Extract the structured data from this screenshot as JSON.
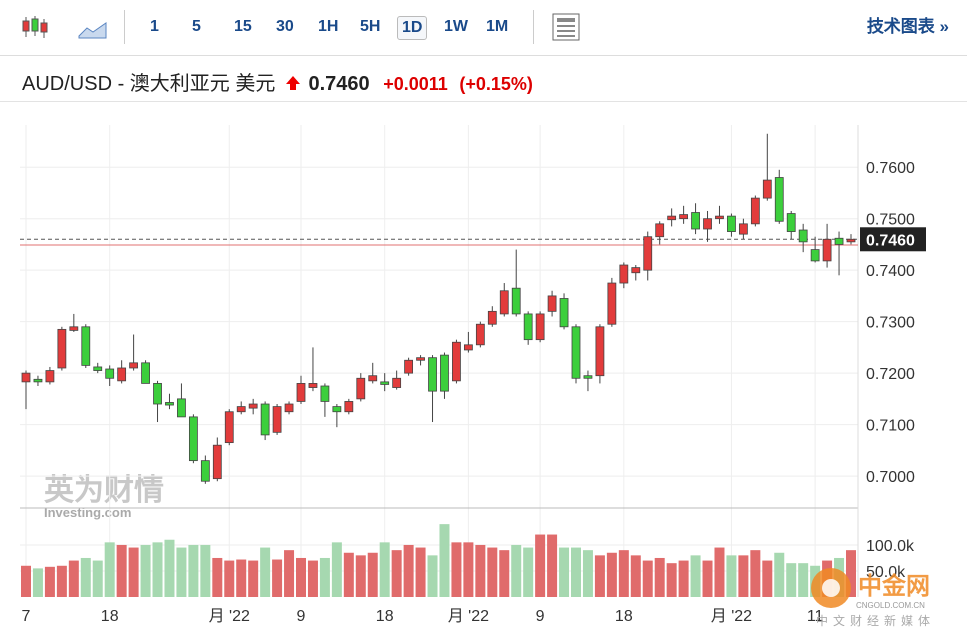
{
  "toolbar": {
    "intervals": [
      "1",
      "5",
      "15",
      "30",
      "1H",
      "5H",
      "1D",
      "1W",
      "1M"
    ],
    "active": "1D",
    "link": "技术图表 »"
  },
  "header": {
    "title": "AUD/USD - 澳大利亚元 美元",
    "price": "0.7460",
    "change": "+0.0011",
    "change_pct": "(+0.15%)"
  },
  "watermark": {
    "brand": "英为财情",
    "site": "Investing.com",
    "logo": "中金网",
    "logo_url": "CNGOLD.COM.CN",
    "logo_tagline": "中文财经新媒体"
  },
  "chart_data": {
    "type": "candlestick",
    "categories": [
      "7",
      null,
      null,
      null,
      null,
      null,
      null,
      "18",
      null,
      null,
      null,
      null,
      null,
      null,
      null,
      null,
      null,
      "月 '22",
      null,
      null,
      null,
      null,
      null,
      "9",
      null,
      null,
      null,
      null,
      null,
      null,
      "18",
      null,
      null,
      null,
      null,
      null,
      null,
      "月 '22",
      null,
      null,
      null,
      null,
      null,
      "9",
      null,
      null,
      null,
      null,
      null,
      null,
      "18",
      null,
      null,
      null,
      null,
      null,
      null,
      null,
      null,
      "月 '22",
      null,
      null,
      null,
      null,
      null,
      null,
      "11",
      null,
      null,
      null
    ],
    "open": [
      0.7183,
      0.7188,
      0.7183,
      0.721,
      0.7283,
      0.729,
      0.7212,
      0.7208,
      0.7185,
      0.721,
      0.722,
      0.718,
      0.7143,
      0.715,
      0.7115,
      0.703,
      0.6995,
      0.7065,
      0.7125,
      0.7132,
      0.714,
      0.7085,
      0.7125,
      0.7145,
      0.7172,
      0.7175,
      0.7135,
      0.7125,
      0.715,
      0.7185,
      0.7183,
      0.7172,
      0.72,
      0.7225,
      0.723,
      0.7235,
      0.7185,
      0.7245,
      0.7255,
      0.7295,
      0.7315,
      0.7365,
      0.7315,
      0.7265,
      0.732,
      0.7345,
      0.729,
      0.7195,
      0.7195,
      0.7295,
      0.7375,
      0.7395,
      0.74,
      0.7465,
      0.7498,
      0.75,
      0.7512,
      0.748,
      0.75,
      0.7505,
      0.747,
      0.749,
      0.754,
      0.758,
      0.751,
      0.7478,
      0.744,
      0.7418,
      0.7462,
      0.7455
    ],
    "high": [
      0.7205,
      0.7195,
      0.7212,
      0.729,
      0.7315,
      0.7295,
      0.722,
      0.7215,
      0.7225,
      0.7275,
      0.7225,
      0.7185,
      0.716,
      0.718,
      0.712,
      0.704,
      0.7075,
      0.713,
      0.7145,
      0.715,
      0.7145,
      0.714,
      0.7145,
      0.7195,
      0.725,
      0.718,
      0.714,
      0.715,
      0.72,
      0.722,
      0.72,
      0.7205,
      0.723,
      0.7235,
      0.7235,
      0.724,
      0.7265,
      0.728,
      0.73,
      0.733,
      0.7375,
      0.744,
      0.732,
      0.732,
      0.736,
      0.7355,
      0.7295,
      0.7205,
      0.7295,
      0.7385,
      0.7415,
      0.741,
      0.7475,
      0.7495,
      0.752,
      0.7525,
      0.753,
      0.7515,
      0.7525,
      0.751,
      0.75,
      0.7545,
      0.7665,
      0.7595,
      0.7515,
      0.749,
      0.7465,
      0.749,
      0.7475,
      0.747
    ],
    "low": [
      0.713,
      0.7175,
      0.7178,
      0.7205,
      0.728,
      0.721,
      0.72,
      0.7175,
      0.718,
      0.7205,
      0.718,
      0.7105,
      0.713,
      0.7115,
      0.7025,
      0.6985,
      0.699,
      0.706,
      0.712,
      0.712,
      0.707,
      0.708,
      0.712,
      0.714,
      0.7165,
      0.7115,
      0.7095,
      0.712,
      0.7145,
      0.718,
      0.7165,
      0.7168,
      0.7195,
      0.7215,
      0.7105,
      0.715,
      0.718,
      0.724,
      0.725,
      0.729,
      0.731,
      0.731,
      0.7255,
      0.726,
      0.731,
      0.7285,
      0.718,
      0.7165,
      0.718,
      0.729,
      0.7365,
      0.738,
      0.738,
      0.745,
      0.7485,
      0.749,
      0.747,
      0.7455,
      0.749,
      0.7465,
      0.746,
      0.7485,
      0.7535,
      0.749,
      0.746,
      0.7435,
      0.7415,
      0.7405,
      0.739,
      0.745
    ],
    "close": [
      0.72,
      0.7183,
      0.7205,
      0.7285,
      0.729,
      0.7215,
      0.7205,
      0.719,
      0.721,
      0.722,
      0.718,
      0.714,
      0.7138,
      0.7115,
      0.703,
      0.699,
      0.706,
      0.7125,
      0.7135,
      0.714,
      0.708,
      0.7135,
      0.714,
      0.718,
      0.718,
      0.7145,
      0.7125,
      0.7145,
      0.719,
      0.7195,
      0.7178,
      0.719,
      0.7225,
      0.723,
      0.7165,
      0.7165,
      0.726,
      0.7255,
      0.7295,
      0.732,
      0.736,
      0.7315,
      0.7265,
      0.7315,
      0.735,
      0.729,
      0.719,
      0.719,
      0.729,
      0.7375,
      0.741,
      0.7405,
      0.7465,
      0.749,
      0.7505,
      0.7508,
      0.748,
      0.75,
      0.7505,
      0.7475,
      0.749,
      0.754,
      0.7575,
      0.7495,
      0.7475,
      0.7455,
      0.7418,
      0.746,
      0.745,
      0.746
    ],
    "volume": [
      60000,
      55000,
      58000,
      60000,
      70000,
      75000,
      70000,
      105000,
      100000,
      95000,
      100000,
      105000,
      110000,
      95000,
      100000,
      100000,
      75000,
      70000,
      72000,
      70000,
      95000,
      72000,
      90000,
      75000,
      70000,
      75000,
      105000,
      85000,
      80000,
      85000,
      105000,
      90000,
      100000,
      95000,
      80000,
      140000,
      105000,
      105000,
      100000,
      95000,
      90000,
      100000,
      95000,
      120000,
      120000,
      95000,
      95000,
      90000,
      80000,
      85000,
      90000,
      80000,
      70000,
      75000,
      65000,
      70000,
      80000,
      70000,
      95000,
      80000,
      80000,
      90000,
      70000,
      85000,
      65000,
      65000,
      60000,
      70000,
      75000,
      90000
    ],
    "up_color": "#e23b3b",
    "down_color": "#3ccf3c",
    "volume_up_color": "#e06b6b",
    "volume_down_color": "#a6d8b0",
    "ylim": [
      0.6938,
      0.7682
    ],
    "yticks": [
      {
        "value": 0.76,
        "label": "0.7600"
      },
      {
        "value": 0.75,
        "label": "0.7500"
      },
      {
        "value": 0.74,
        "label": "0.7400"
      },
      {
        "value": 0.73,
        "label": "0.7300"
      },
      {
        "value": 0.72,
        "label": "0.7200"
      },
      {
        "value": 0.71,
        "label": "0.7100"
      },
      {
        "value": 0.7,
        "label": "0.7000"
      }
    ],
    "volume_ylim": [
      0,
      171000
    ],
    "volume_ticks": [
      {
        "value": 100000,
        "label": "100.0k"
      },
      {
        "value": 50000,
        "label": "50.0k"
      }
    ],
    "last_price": {
      "value": 0.746,
      "label": "0.7460"
    },
    "prev_close": 0.7449,
    "grid": true
  }
}
